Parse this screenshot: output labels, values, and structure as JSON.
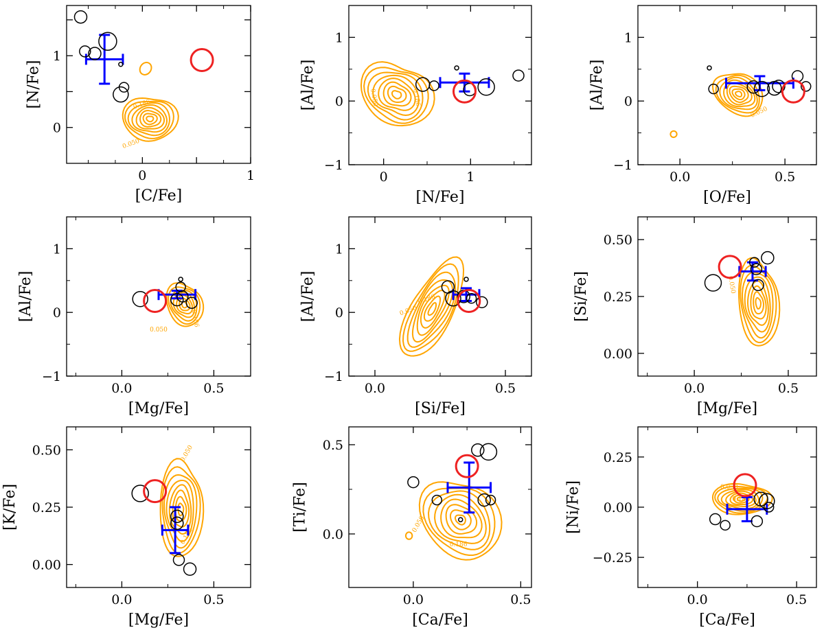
{
  "figure": {
    "colors": {
      "contour": "#FFA500",
      "errorbar": "#0000FF",
      "highlight": "#EE2222",
      "points": "#000000"
    }
  },
  "chart_data": [
    {
      "type": "scatter",
      "id": "c-fe_n-fe",
      "xlabel": "[C/Fe]",
      "ylabel": "[N/Fe]",
      "xlim": [
        -0.7,
        1.0
      ],
      "ylim": [
        -0.5,
        1.7
      ],
      "xticks": [
        0,
        0.5,
        1
      ],
      "xtick_labels": [
        "0",
        "",
        "1"
      ],
      "yticks": [
        0,
        0.5,
        1,
        1.5
      ],
      "ytick_labels": [
        "0",
        "",
        "1",
        ""
      ],
      "xminor": [
        -0.5,
        -0.25,
        0.25,
        0.75
      ],
      "yminor": [],
      "points": [
        {
          "x": -0.57,
          "y": 1.54,
          "s": 9
        },
        {
          "x": -0.53,
          "y": 1.06,
          "s": 8
        },
        {
          "x": -0.44,
          "y": 1.03,
          "s": 9
        },
        {
          "x": -0.32,
          "y": 1.2,
          "s": 13
        },
        {
          "x": -0.2,
          "y": 0.88,
          "s": 3
        },
        {
          "x": -0.17,
          "y": 0.56,
          "s": 7
        },
        {
          "x": -0.2,
          "y": 0.46,
          "s": 11
        }
      ],
      "highlight": {
        "x": 0.55,
        "y": 0.94,
        "s": 16
      },
      "errorbar": {
        "x": -0.35,
        "y": 0.95,
        "xerr": 0.17,
        "yerr": 0.34
      },
      "contours": {
        "cx": 0.07,
        "cy": 0.12,
        "rx": 0.23,
        "ry": 0.33,
        "rot": -20,
        "n": 8,
        "skew": 0.12
      },
      "contour_labels": [
        {
          "text": "0.186",
          "x": 0.0,
          "y": 0.3,
          "rot": -20
        },
        {
          "text": "0.050",
          "x": -0.1,
          "y": -0.25,
          "rot": -20
        }
      ],
      "extra_blobs": [
        {
          "cx": 0.03,
          "cy": 0.82,
          "rx": 0.05,
          "ry": 0.09,
          "rot": 35
        }
      ]
    },
    {
      "type": "scatter",
      "id": "n-fe_al-fe",
      "xlabel": "[N/Fe]",
      "ylabel": "[Al/Fe]",
      "xlim": [
        -0.4,
        1.7
      ],
      "ylim": [
        -1.0,
        1.5
      ],
      "xticks": [
        0,
        1
      ],
      "xtick_labels": [
        "0",
        "1"
      ],
      "yticks": [
        -1,
        0,
        1
      ],
      "ytick_labels": [
        "−1",
        "0",
        "1"
      ],
      "xminor": [
        0.5,
        1.5
      ],
      "yminor": [
        -0.5,
        0.5
      ],
      "points": [
        {
          "x": 0.45,
          "y": 0.26,
          "s": 10
        },
        {
          "x": 0.58,
          "y": 0.24,
          "s": 7
        },
        {
          "x": 0.84,
          "y": 0.52,
          "s": 3
        },
        {
          "x": 0.99,
          "y": 0.18,
          "s": 9
        },
        {
          "x": 1.18,
          "y": 0.22,
          "s": 12
        },
        {
          "x": 1.55,
          "y": 0.4,
          "s": 8
        }
      ],
      "highlight": {
        "x": 0.93,
        "y": 0.15,
        "s": 16
      },
      "errorbar": {
        "x": 0.93,
        "y": 0.29,
        "xerr": 0.28,
        "yerr": 0.14
      },
      "contours": {
        "cx": 0.15,
        "cy": 0.1,
        "rx": 0.36,
        "ry": 0.55,
        "rot": -10,
        "n": 8,
        "skew": 0.18
      },
      "contour_labels": [
        {
          "text": "0.050",
          "x": -0.13,
          "y": 0.05,
          "rot": 80
        },
        {
          "text": "0.186",
          "x": 0.36,
          "y": 0.05,
          "rot": 80
        }
      ],
      "extra_blobs": []
    },
    {
      "type": "scatter",
      "id": "o-fe_al-fe",
      "xlabel": "[O/Fe]",
      "ylabel": "[Al/Fe]",
      "xlim": [
        -0.2,
        0.65
      ],
      "ylim": [
        -1.0,
        1.5
      ],
      "xticks": [
        0,
        0.5
      ],
      "xtick_labels": [
        "0.0",
        "0.5"
      ],
      "yticks": [
        -1,
        0,
        1
      ],
      "ytick_labels": [
        "−1",
        "0",
        "1"
      ],
      "xminor": [
        0.25
      ],
      "yminor": [
        -0.5,
        0.5
      ],
      "points": [
        {
          "x": 0.14,
          "y": 0.52,
          "s": 3
        },
        {
          "x": 0.16,
          "y": 0.19,
          "s": 7
        },
        {
          "x": 0.35,
          "y": 0.22,
          "s": 9
        },
        {
          "x": 0.39,
          "y": 0.19,
          "s": 11
        },
        {
          "x": 0.45,
          "y": 0.2,
          "s": 10
        },
        {
          "x": 0.47,
          "y": 0.23,
          "s": 9
        },
        {
          "x": 0.56,
          "y": 0.39,
          "s": 8
        },
        {
          "x": 0.6,
          "y": 0.23,
          "s": 7
        }
      ],
      "highlight": {
        "x": 0.54,
        "y": 0.15,
        "s": 16
      },
      "errorbar": {
        "x": 0.38,
        "y": 0.28,
        "xerr": 0.16,
        "yerr": 0.11
      },
      "contours": {
        "cx": 0.28,
        "cy": 0.11,
        "rx": 0.09,
        "ry": 0.42,
        "rot": -45,
        "n": 8,
        "skew": 0.1
      },
      "contour_labels": [
        {
          "text": "0.050",
          "x": 0.38,
          "y": -0.2,
          "rot": -25
        }
      ],
      "extra_blobs": [
        {
          "cx": -0.03,
          "cy": -0.52,
          "rx": 0.015,
          "ry": 0.05,
          "rot": 55
        }
      ]
    },
    {
      "type": "scatter",
      "id": "mg-fe_al-fe",
      "xlabel": "[Mg/Fe]",
      "ylabel": "[Al/Fe]",
      "xlim": [
        -0.3,
        0.7
      ],
      "ylim": [
        -1.0,
        1.5
      ],
      "xticks": [
        0,
        0.5
      ],
      "xtick_labels": [
        "0.0",
        "0.5"
      ],
      "yticks": [
        -1,
        0,
        1
      ],
      "ytick_labels": [
        "−1",
        "0",
        "1"
      ],
      "xminor": [
        -0.25,
        0.25
      ],
      "yminor": [
        -0.5,
        0.5
      ],
      "points": [
        {
          "x": 0.1,
          "y": 0.21,
          "s": 11
        },
        {
          "x": 0.3,
          "y": 0.2,
          "s": 9
        },
        {
          "x": 0.32,
          "y": 0.52,
          "s": 3
        },
        {
          "x": 0.32,
          "y": 0.4,
          "s": 7
        },
        {
          "x": 0.33,
          "y": 0.25,
          "s": 8
        },
        {
          "x": 0.38,
          "y": 0.15,
          "s": 8
        }
      ],
      "highlight": {
        "x": 0.18,
        "y": 0.18,
        "s": 16
      },
      "errorbar": {
        "x": 0.3,
        "y": 0.28,
        "xerr": 0.1,
        "yerr": 0.06
      },
      "contours": {
        "cx": 0.34,
        "cy": 0.12,
        "rx": 0.09,
        "ry": 0.36,
        "rot": -10,
        "n": 7,
        "skew": 0.1
      },
      "contour_labels": [
        {
          "text": "0.050",
          "x": 0.2,
          "y": -0.3,
          "rot": 0
        },
        {
          "text": "0.186",
          "x": 0.39,
          "y": -0.1,
          "rot": 80
        }
      ],
      "extra_blobs": []
    },
    {
      "type": "scatter",
      "id": "si-fe_al-fe",
      "xlabel": "[Si/Fe]",
      "ylabel": "[Al/Fe]",
      "xlim": [
        -0.1,
        0.6
      ],
      "ylim": [
        -1.0,
        1.5
      ],
      "xticks": [
        0,
        0.5
      ],
      "xtick_labels": [
        "0.0",
        "0.5"
      ],
      "yticks": [
        -1,
        0,
        1
      ],
      "ytick_labels": [
        "−1",
        "0",
        "1"
      ],
      "xminor": [
        0.25
      ],
      "yminor": [
        -0.5,
        0.5
      ],
      "points": [
        {
          "x": 0.28,
          "y": 0.4,
          "s": 9
        },
        {
          "x": 0.3,
          "y": 0.22,
          "s": 11
        },
        {
          "x": 0.34,
          "y": 0.25,
          "s": 9
        },
        {
          "x": 0.35,
          "y": 0.52,
          "s": 3
        },
        {
          "x": 0.37,
          "y": 0.22,
          "s": 7
        },
        {
          "x": 0.41,
          "y": 0.16,
          "s": 8
        }
      ],
      "highlight": {
        "x": 0.36,
        "y": 0.18,
        "s": 16
      },
      "errorbar": {
        "x": 0.35,
        "y": 0.28,
        "xerr": 0.05,
        "yerr": 0.1
      },
      "contours": {
        "cx": 0.22,
        "cy": 0.05,
        "rx": 0.2,
        "ry": 0.34,
        "rot": -65,
        "n": 8,
        "skew": 0.08
      },
      "contour_labels": [
        {
          "text": "0.050",
          "x": 0.13,
          "y": 0.0,
          "rot": -20
        },
        {
          "text": "0.186",
          "x": 0.2,
          "y": 0.18,
          "rot": -20
        }
      ],
      "extra_blobs": []
    },
    {
      "type": "scatter",
      "id": "mg-fe_si-fe",
      "xlabel": "[Mg/Fe]",
      "ylabel": "[Si/Fe]",
      "xlim": [
        -0.3,
        0.65
      ],
      "ylim": [
        -0.1,
        0.6
      ],
      "xticks": [
        0,
        0.5
      ],
      "xtick_labels": [
        "0.0",
        "0.5"
      ],
      "yticks": [
        0,
        0.25,
        0.5
      ],
      "ytick_labels": [
        "0.00",
        "0.25",
        "0.50"
      ],
      "xminor": [
        -0.25,
        0.25
      ],
      "yminor": [],
      "points": [
        {
          "x": 0.1,
          "y": 0.31,
          "s": 12
        },
        {
          "x": 0.32,
          "y": 0.4,
          "s": 7
        },
        {
          "x": 0.33,
          "y": 0.37,
          "s": 8
        },
        {
          "x": 0.34,
          "y": 0.3,
          "s": 8
        },
        {
          "x": 0.39,
          "y": 0.42,
          "s": 9
        }
      ],
      "highlight": {
        "x": 0.19,
        "y": 0.38,
        "s": 16
      },
      "errorbar": {
        "x": 0.31,
        "y": 0.36,
        "xerr": 0.07,
        "yerr": 0.04
      },
      "contours": {
        "cx": 0.34,
        "cy": 0.22,
        "rx": 0.1,
        "ry": 0.2,
        "rot": 0,
        "n": 8,
        "skew": 0.12
      },
      "contour_labels": [
        {
          "text": "0.050",
          "x": 0.19,
          "y": 0.3,
          "rot": 80
        }
      ],
      "extra_blobs": []
    },
    {
      "type": "scatter",
      "id": "mg-fe_k-fe",
      "xlabel": "[Mg/Fe]",
      "ylabel": "[K/Fe]",
      "xlim": [
        -0.3,
        0.7
      ],
      "ylim": [
        -0.1,
        0.6
      ],
      "xticks": [
        0,
        0.5
      ],
      "xtick_labels": [
        "0.0",
        "0.5"
      ],
      "yticks": [
        0,
        0.25,
        0.5
      ],
      "ytick_labels": [
        "0.00",
        "0.25",
        "0.50"
      ],
      "xminor": [
        -0.25,
        0.25
      ],
      "yminor": [],
      "points": [
        {
          "x": 0.1,
          "y": 0.31,
          "s": 12
        },
        {
          "x": 0.3,
          "y": 0.21,
          "s": 9
        },
        {
          "x": 0.3,
          "y": 0.18,
          "s": 9
        },
        {
          "x": 0.31,
          "y": 0.02,
          "s": 8
        },
        {
          "x": 0.37,
          "y": -0.02,
          "s": 9
        }
      ],
      "highlight": {
        "x": 0.18,
        "y": 0.32,
        "s": 16
      },
      "errorbar": {
        "x": 0.29,
        "y": 0.15,
        "xerr": 0.07,
        "yerr": 0.1
      },
      "contours": {
        "cx": 0.32,
        "cy": 0.24,
        "rx": 0.11,
        "ry": 0.22,
        "rot": 5,
        "n": 8,
        "skew": 0.12
      },
      "contour_labels": [
        {
          "text": "0.050",
          "x": 0.36,
          "y": 0.48,
          "rot": -60
        },
        {
          "text": "0.186",
          "x": 0.36,
          "y": 0.12,
          "rot": -60
        }
      ],
      "extra_blobs": []
    },
    {
      "type": "scatter",
      "id": "ca-fe_ti-fe",
      "xlabel": "[Ca/Fe]",
      "ylabel": "[Ti/Fe]",
      "xlim": [
        -0.3,
        0.55
      ],
      "ylim": [
        -0.3,
        0.6
      ],
      "xticks": [
        0,
        0.5
      ],
      "xtick_labels": [
        "0.0",
        "0.5"
      ],
      "yticks": [
        0,
        0.5
      ],
      "ytick_labels": [
        "0.0",
        "0.5"
      ],
      "xminor": [
        0.25
      ],
      "yminor": [
        0.25
      ],
      "points": [
        {
          "x": 0.0,
          "y": 0.29,
          "s": 8
        },
        {
          "x": 0.11,
          "y": 0.19,
          "s": 7
        },
        {
          "x": 0.22,
          "y": 0.08,
          "s": 3
        },
        {
          "x": 0.3,
          "y": 0.47,
          "s": 9
        },
        {
          "x": 0.33,
          "y": 0.19,
          "s": 9
        },
        {
          "x": 0.36,
          "y": 0.19,
          "s": 7
        },
        {
          "x": 0.35,
          "y": 0.46,
          "s": 12
        }
      ],
      "highlight": {
        "x": 0.25,
        "y": 0.38,
        "s": 16
      },
      "errorbar": {
        "x": 0.26,
        "y": 0.26,
        "xerr": 0.1,
        "yerr": 0.14
      },
      "contours": {
        "cx": 0.22,
        "cy": 0.08,
        "rx": 0.16,
        "ry": 0.25,
        "rot": -25,
        "n": 8,
        "skew": 0.12
      },
      "contour_labels": [
        {
          "text": "0.050",
          "x": 0.03,
          "y": 0.05,
          "rot": -60
        },
        {
          "text": "0.186",
          "x": 0.21,
          "y": -0.07,
          "rot": 0
        }
      ],
      "extra_blobs": [
        {
          "cx": -0.02,
          "cy": -0.01,
          "rx": 0.015,
          "ry": 0.02,
          "rot": 0
        }
      ]
    },
    {
      "type": "scatter",
      "id": "ca-fe_ni-fe",
      "xlabel": "[Ca/Fe]",
      "ylabel": "[Ni/Fe]",
      "xlim": [
        -0.3,
        0.6
      ],
      "ylim": [
        -0.4,
        0.4
      ],
      "xticks": [
        0,
        0.5
      ],
      "xtick_labels": [
        "0.0",
        "0.5"
      ],
      "yticks": [
        -0.25,
        0,
        0.25
      ],
      "ytick_labels": [
        "−0.25",
        "0.00",
        "0.25"
      ],
      "xminor": [
        -0.25,
        0.25
      ],
      "yminor": [],
      "points": [
        {
          "x": 0.09,
          "y": -0.06,
          "s": 8
        },
        {
          "x": 0.14,
          "y": -0.09,
          "s": 7
        },
        {
          "x": 0.3,
          "y": -0.07,
          "s": 8
        },
        {
          "x": 0.32,
          "y": 0.04,
          "s": 10
        },
        {
          "x": 0.35,
          "y": 0.03,
          "s": 11
        },
        {
          "x": 0.36,
          "y": 0.0,
          "s": 7
        }
      ],
      "highlight": {
        "x": 0.24,
        "y": 0.11,
        "s": 16
      },
      "errorbar": {
        "x": 0.25,
        "y": -0.01,
        "xerr": 0.1,
        "yerr": 0.06
      },
      "contours": {
        "cx": 0.22,
        "cy": 0.04,
        "rx": 0.14,
        "ry": 0.08,
        "rot": -5,
        "n": 8,
        "skew": 0.1
      },
      "contour_labels": [
        {
          "text": "0.050",
          "x": 0.16,
          "y": 0.09,
          "rot": 0
        },
        {
          "text": "0.186",
          "x": 0.22,
          "y": 0.03,
          "rot": 0
        }
      ],
      "extra_blobs": []
    }
  ]
}
